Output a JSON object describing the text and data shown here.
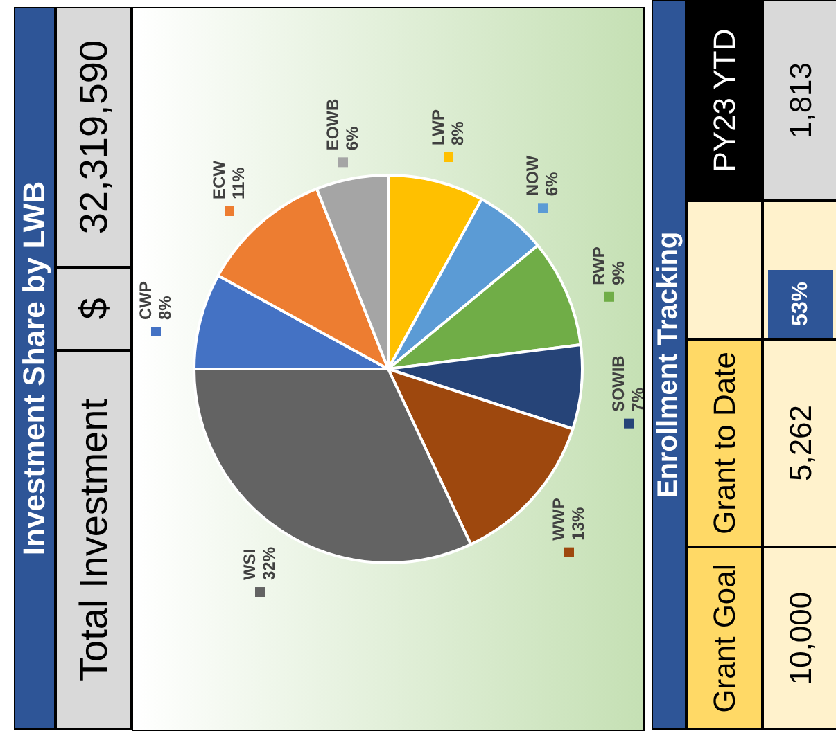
{
  "chart_data": {
    "type": "pie",
    "title": "Investment Share by LWB",
    "categories": [
      "CWP",
      "ECW",
      "EOWB",
      "LWP",
      "NOW",
      "RWP",
      "SOWIB",
      "WWP",
      "WSI"
    ],
    "values": [
      8,
      11,
      6,
      8,
      6,
      9,
      7,
      13,
      32
    ],
    "value_labels": [
      "8%",
      "11%",
      "6%",
      "8%",
      "6%",
      "9%",
      "7%",
      "13%",
      "32%"
    ],
    "colors": [
      "#4472c4",
      "#ed7d31",
      "#a5a5a5",
      "#ffc000",
      "#5b9bd5",
      "#70ad47",
      "#264478",
      "#9e480e",
      "#636363"
    ],
    "legend": false,
    "annotations": [
      "Total Investment",
      "$",
      "32,319,590",
      "Enrollment Tracking",
      "Grant Goal",
      "Grant to Date",
      "PY23 YTD",
      "10,000",
      "5,262",
      "53%",
      "1,813"
    ]
  }
}
